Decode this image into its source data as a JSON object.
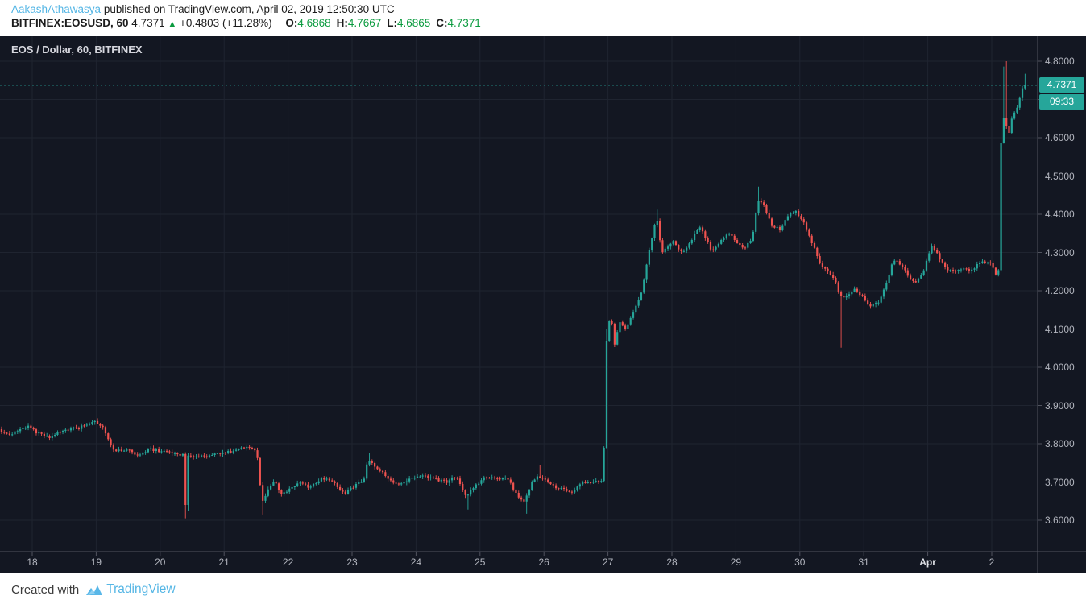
{
  "header": {
    "username": "AakashAthawasya",
    "published_text": "published on TradingView.com, April 02, 2019 12:50:30 UTC",
    "symbol_line": {
      "symbol": "BITFINEX:EOSUSD, 60",
      "last_price": "4.7371",
      "direction_icon": "▲",
      "change": "+0.4803 (+11.28%)",
      "ohlc": [
        {
          "label": "O:",
          "value": "4.6868"
        },
        {
          "label": "H:",
          "value": "4.7667"
        },
        {
          "label": "L:",
          "value": "4.6865"
        },
        {
          "label": "C:",
          "value": "4.7371"
        }
      ]
    }
  },
  "chart": {
    "title": "EOS / Dollar, 60, BITFINEX",
    "price_badge": "4.7371",
    "countdown_badge": "09:33",
    "y_axis_labels": [
      "4.8000",
      "4.7000",
      "4.6000",
      "4.5000",
      "4.4000",
      "4.3000",
      "4.2000",
      "4.1000",
      "4.0000",
      "3.9000",
      "3.8000",
      "3.7000",
      "3.6000"
    ],
    "x_axis_labels": [
      {
        "label": "18"
      },
      {
        "label": "19"
      },
      {
        "label": "20"
      },
      {
        "label": "21"
      },
      {
        "label": "22"
      },
      {
        "label": "23"
      },
      {
        "label": "24"
      },
      {
        "label": "25"
      },
      {
        "label": "26"
      },
      {
        "label": "27"
      },
      {
        "label": "28"
      },
      {
        "label": "29"
      },
      {
        "label": "30"
      },
      {
        "label": "31"
      },
      {
        "label": "Apr",
        "bold": true
      },
      {
        "label": "2"
      }
    ],
    "colors": {
      "background": "#131722",
      "grid": "#1f2430",
      "border": "#50535e",
      "up": "#26a69a",
      "down": "#ef5350",
      "price_line": "#26a69a",
      "badge": "#26a69a",
      "axis_text": "#b2b5be",
      "accent_blue": "#55b6e5",
      "header_green": "#0b9b3f"
    }
  },
  "chart_data": {
    "type": "candlestick",
    "symbol": "EOS/USD",
    "exchange": "BITFINEX",
    "interval_minutes": 60,
    "title": "EOS / Dollar, 60, BITFINEX",
    "last_close": 4.7371,
    "session_open": 4.6868,
    "session_high": 4.7667,
    "session_low": 4.6865,
    "change_abs": 0.4803,
    "change_pct": 11.28,
    "countdown_to_bar_close": "09:33",
    "ylim": [
      3.518,
      4.859
    ],
    "y_ticks": [
      3.6,
      3.7,
      3.8,
      3.9,
      4.0,
      4.1,
      4.2,
      4.3,
      4.4,
      4.5,
      4.6,
      4.7,
      4.8
    ],
    "x_days": [
      "Mar 18",
      "Mar 19",
      "Mar 20",
      "Mar 21",
      "Mar 22",
      "Mar 23",
      "Mar 24",
      "Mar 25",
      "Mar 26",
      "Mar 27",
      "Mar 28",
      "Mar 29",
      "Mar 30",
      "Mar 31",
      "Apr 1",
      "Apr 2"
    ],
    "grid": true,
    "legend_position": "none",
    "price_path_units": "t = days since Mar 18 00:00, hourly candles interpolated along path",
    "price_path": [
      [
        -0.5,
        3.838
      ],
      [
        -0.35,
        3.822
      ],
      [
        -0.2,
        3.835
      ],
      [
        -0.05,
        3.846
      ],
      [
        0.1,
        3.828
      ],
      [
        0.3,
        3.815
      ],
      [
        0.5,
        3.836
      ],
      [
        0.75,
        3.842
      ],
      [
        1.0,
        3.86
      ],
      [
        1.12,
        3.845
      ],
      [
        1.3,
        3.78
      ],
      [
        1.5,
        3.786
      ],
      [
        1.68,
        3.77
      ],
      [
        1.85,
        3.786
      ],
      [
        2.05,
        3.78
      ],
      [
        2.25,
        3.776
      ],
      [
        2.375,
        3.77
      ],
      [
        2.417,
        3.642
      ],
      [
        2.458,
        3.768
      ],
      [
        2.65,
        3.766
      ],
      [
        2.9,
        3.772
      ],
      [
        3.15,
        3.78
      ],
      [
        3.38,
        3.795
      ],
      [
        3.5,
        3.786
      ],
      [
        3.542,
        3.76
      ],
      [
        3.583,
        3.692
      ],
      [
        3.625,
        3.65
      ],
      [
        3.72,
        3.688
      ],
      [
        3.82,
        3.7
      ],
      [
        3.92,
        3.665
      ],
      [
        4.05,
        3.682
      ],
      [
        4.2,
        3.7
      ],
      [
        4.35,
        3.686
      ],
      [
        4.55,
        3.71
      ],
      [
        4.75,
        3.698
      ],
      [
        4.9,
        3.668
      ],
      [
        5.05,
        3.688
      ],
      [
        5.2,
        3.705
      ],
      [
        5.27,
        3.758
      ],
      [
        5.4,
        3.74
      ],
      [
        5.55,
        3.716
      ],
      [
        5.73,
        3.69
      ],
      [
        5.9,
        3.705
      ],
      [
        6.1,
        3.716
      ],
      [
        6.3,
        3.708
      ],
      [
        6.5,
        3.7
      ],
      [
        6.65,
        3.716
      ],
      [
        6.8,
        3.662
      ],
      [
        6.95,
        3.69
      ],
      [
        7.09,
        3.712
      ],
      [
        7.25,
        3.71
      ],
      [
        7.45,
        3.708
      ],
      [
        7.62,
        3.662
      ],
      [
        7.71,
        3.65
      ],
      [
        7.85,
        3.705
      ],
      [
        7.92,
        3.718
      ],
      [
        8.05,
        3.705
      ],
      [
        8.2,
        3.685
      ],
      [
        8.35,
        3.68
      ],
      [
        8.44,
        3.668
      ],
      [
        8.6,
        3.695
      ],
      [
        8.8,
        3.702
      ],
      [
        8.917,
        3.705
      ],
      [
        8.958,
        3.788
      ],
      [
        9.0,
        4.068
      ],
      [
        9.06,
        4.15
      ],
      [
        9.12,
        4.052
      ],
      [
        9.2,
        4.118
      ],
      [
        9.3,
        4.096
      ],
      [
        9.42,
        4.146
      ],
      [
        9.55,
        4.2
      ],
      [
        9.66,
        4.3
      ],
      [
        9.78,
        4.398
      ],
      [
        9.86,
        4.3
      ],
      [
        9.95,
        4.312
      ],
      [
        10.05,
        4.33
      ],
      [
        10.18,
        4.298
      ],
      [
        10.32,
        4.33
      ],
      [
        10.45,
        4.368
      ],
      [
        10.56,
        4.336
      ],
      [
        10.64,
        4.3
      ],
      [
        10.78,
        4.33
      ],
      [
        10.9,
        4.352
      ],
      [
        11.02,
        4.33
      ],
      [
        11.15,
        4.31
      ],
      [
        11.28,
        4.338
      ],
      [
        11.36,
        4.438
      ],
      [
        11.45,
        4.428
      ],
      [
        11.58,
        4.37
      ],
      [
        11.72,
        4.36
      ],
      [
        11.85,
        4.4
      ],
      [
        11.96,
        4.408
      ],
      [
        12.08,
        4.378
      ],
      [
        12.2,
        4.33
      ],
      [
        12.34,
        4.272
      ],
      [
        12.47,
        4.248
      ],
      [
        12.58,
        4.228
      ],
      [
        12.62,
        4.198
      ],
      [
        12.72,
        4.178
      ],
      [
        12.86,
        4.205
      ],
      [
        13.0,
        4.186
      ],
      [
        13.12,
        4.16
      ],
      [
        13.26,
        4.172
      ],
      [
        13.4,
        4.232
      ],
      [
        13.48,
        4.282
      ],
      [
        13.6,
        4.268
      ],
      [
        13.72,
        4.238
      ],
      [
        13.82,
        4.218
      ],
      [
        13.95,
        4.252
      ],
      [
        14.08,
        4.316
      ],
      [
        14.18,
        4.292
      ],
      [
        14.32,
        4.258
      ],
      [
        14.45,
        4.248
      ],
      [
        14.58,
        4.262
      ],
      [
        14.7,
        4.252
      ],
      [
        14.82,
        4.272
      ],
      [
        14.95,
        4.278
      ],
      [
        15.02,
        4.272
      ],
      [
        15.07,
        4.24
      ],
      [
        15.125,
        4.252
      ],
      [
        15.167,
        4.588
      ],
      [
        15.208,
        4.655
      ],
      [
        15.25,
        4.628
      ],
      [
        15.292,
        4.61
      ],
      [
        15.333,
        4.648
      ],
      [
        15.375,
        4.665
      ],
      [
        15.417,
        4.682
      ],
      [
        15.458,
        4.7
      ],
      [
        15.5,
        4.726
      ],
      [
        15.542,
        4.7371
      ]
    ],
    "spikes": [
      {
        "t": 2.4,
        "low": 3.605
      },
      {
        "t": 2.43,
        "low": 3.625
      },
      {
        "t": 3.6,
        "low": 3.615
      },
      {
        "t": 5.28,
        "high": 3.775
      },
      {
        "t": 6.8,
        "low": 3.628
      },
      {
        "t": 7.71,
        "low": 3.617
      },
      {
        "t": 7.93,
        "high": 3.745
      },
      {
        "t": 8.98,
        "high": 4.1
      },
      {
        "t": 9.79,
        "high": 4.412
      },
      {
        "t": 11.37,
        "high": 4.472
      },
      {
        "t": 12.63,
        "low": 4.051
      },
      {
        "t": 15.14,
        "high": 4.62
      },
      {
        "t": 15.18,
        "high": 4.786
      },
      {
        "t": 15.22,
        "high": 4.8
      },
      {
        "t": 15.27,
        "low": 4.545
      },
      {
        "t": 15.51,
        "high": 4.767
      }
    ]
  },
  "footer": {
    "created_with": "Created with",
    "brand": "TradingView"
  }
}
